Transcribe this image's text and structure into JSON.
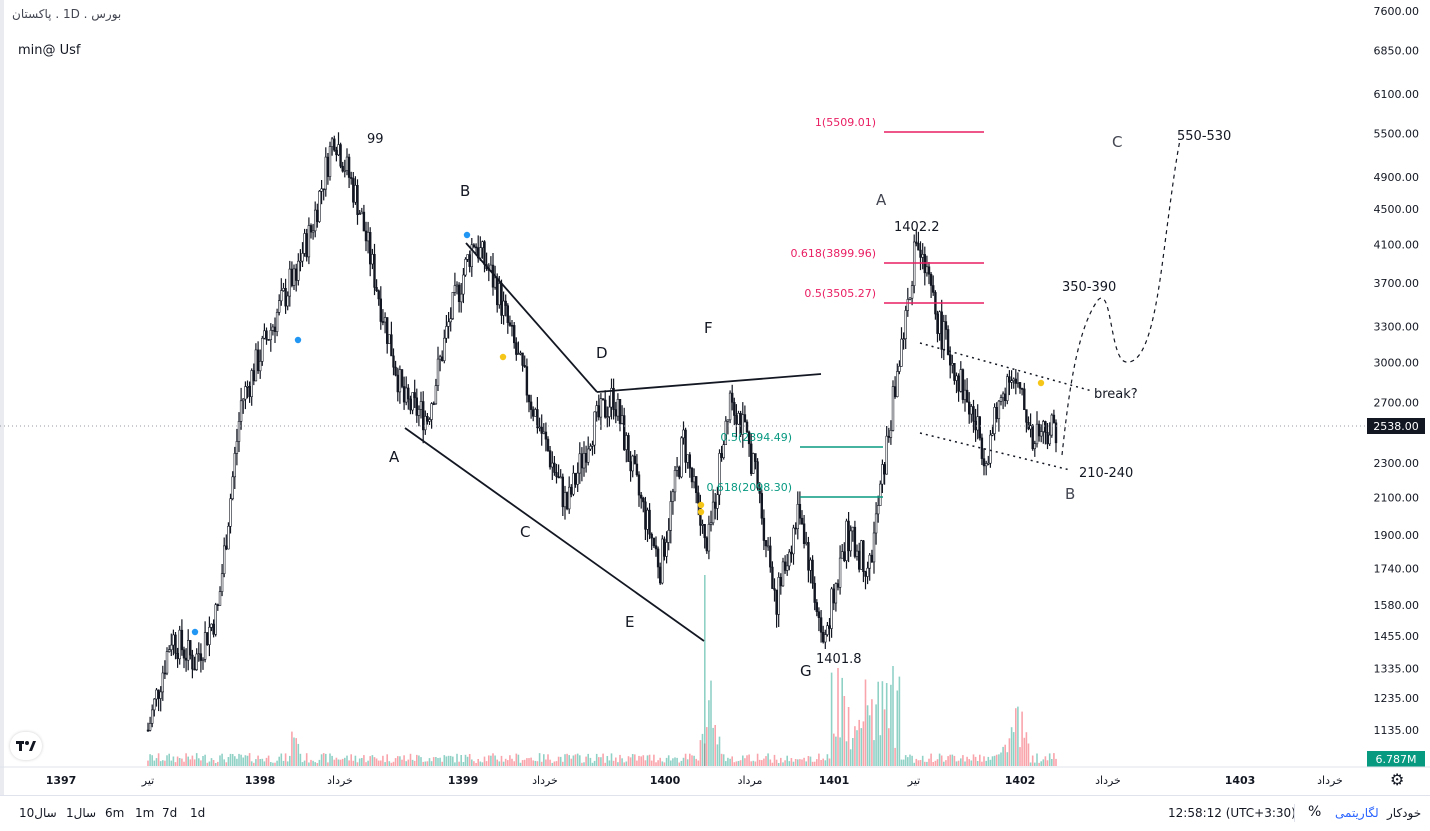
{
  "header": {
    "symbol_line": "بورس . 1D . پاکستان",
    "study_label": "min@ Usf"
  },
  "chart_data": {
    "type": "candlestick",
    "scale": "log",
    "ylim": [
      1135,
      7600
    ],
    "price_axis_ticks": [
      7600,
      6850,
      6100,
      5500,
      4900,
      4500,
      4100,
      3700,
      3300,
      3000,
      2700,
      2300,
      2100,
      1900,
      1740,
      1580,
      1455,
      1335,
      1235,
      1135
    ],
    "last_price": "2538.00",
    "volume_label": "6.787M",
    "time_axis_labels": [
      "1397",
      "تیر",
      "1398",
      "خرداد",
      "1399",
      "خرداد",
      "1400",
      "مرداد",
      "1401",
      "تیر",
      "1402",
      "خرداد",
      "1403",
      "خرداد"
    ],
    "price_path": [
      [
        "1397",
        1135
      ],
      [
        "1397-06",
        1455
      ],
      [
        "1397-08",
        1360
      ],
      [
        "1397-11",
        1560
      ],
      [
        "1398-02",
        2700
      ],
      [
        "1398-03",
        3150
      ],
      [
        "1398-04",
        3650
      ],
      [
        "1398-05",
        4250
      ],
      [
        "1398-07",
        5500
      ],
      [
        "1398-08",
        4600
      ],
      [
        "1398-09",
        3500
      ],
      [
        "1398-10",
        2700
      ],
      [
        "1398-11",
        2600
      ],
      [
        "1399-01",
        3400
      ],
      [
        "1399-02",
        4150
      ],
      [
        "1399-03",
        3650
      ],
      [
        "1399-04",
        2950
      ],
      [
        "1399-05",
        2450
      ],
      [
        "1399-06",
        2050
      ],
      [
        "1399-08",
        2500
      ],
      [
        "1399-10",
        2750
      ],
      [
        "1399-12",
        2150
      ],
      [
        "1400-01",
        1750
      ],
      [
        "1400-02",
        2450
      ],
      [
        "1400-03",
        1800
      ],
      [
        "1400-04",
        2800
      ],
      [
        "1400-05",
        2300
      ],
      [
        "1400-06",
        1600
      ],
      [
        "1400-09",
        2050
      ],
      [
        "1400-10",
        1420
      ],
      [
        "1400-12",
        1900
      ],
      [
        "1401-02",
        1750
      ],
      [
        "1401-03",
        2700
      ],
      [
        "1401-04",
        4150
      ],
      [
        "1401-05",
        3300
      ],
      [
        "1401-07",
        2800
      ],
      [
        "1401-09",
        2350
      ],
      [
        "1401-11",
        2950
      ],
      [
        "1402-01",
        2500
      ],
      [
        "1402-02",
        2538
      ]
    ],
    "fib_levels": [
      {
        "label": "1(5509.01)",
        "value": 5509.01,
        "color": "#e91e63"
      },
      {
        "label": "0.618(3899.96)",
        "value": 3899.96,
        "color": "#e91e63"
      },
      {
        "label": "0.5(3505.27)",
        "value": 3505.27,
        "color": "#e91e63"
      },
      {
        "label": "0.5(2394.49)",
        "value": 2394.49,
        "color": "#089981"
      },
      {
        "label": "0.618(2098.30)",
        "value": 2098.3,
        "color": "#089981"
      }
    ],
    "annotations": {
      "peak_label": "99",
      "wave_labels": [
        "A",
        "B",
        "C",
        "D",
        "E",
        "F",
        "G",
        "A",
        "B",
        "C"
      ],
      "price_notes": [
        "1402.2",
        "1401.8",
        "550-530",
        "350-390",
        "210-240",
        "break?"
      ]
    }
  },
  "bottom_bar": {
    "timeframes": [
      "1d",
      "7d",
      "1m",
      "6m",
      "1سال",
      "10سال"
    ],
    "clock": "12:58:12 (UTC+3:30)",
    "percent": "%",
    "log_label": "لگاریتمی",
    "auto_label": "خودکار"
  }
}
